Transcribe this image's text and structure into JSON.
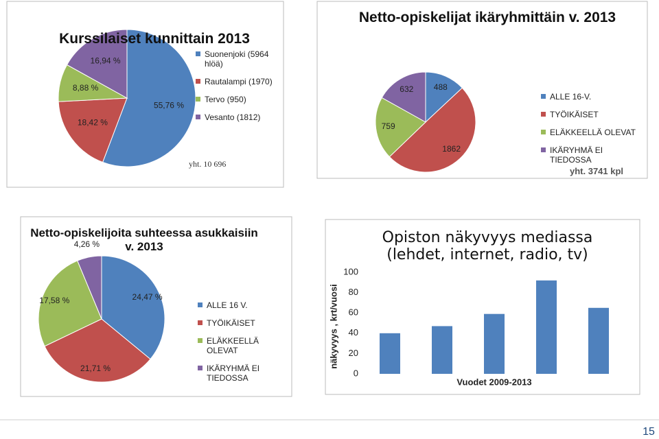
{
  "chart_data": [
    {
      "type": "pie",
      "title": "Kurssilaiset kunnittain 2013",
      "categories": [
        "Suonenjoki (5964 hlöä)",
        "Rautalampi (1970)",
        "Tervo (950)",
        "Vesanto (1812)"
      ],
      "values": [
        55.76,
        18.42,
        8.88,
        16.94
      ],
      "value_labels": [
        "55,76 %",
        "18,42 %",
        "8,88 %",
        "16,94 %"
      ],
      "colors": [
        "#4f81bd",
        "#c0504d",
        "#9bbb59",
        "#8064a2"
      ],
      "note": "yht. 10 696"
    },
    {
      "type": "pie",
      "title": "Netto-opiskelijat ikäryhmittäin v. 2013",
      "categories": [
        "ALLE 16-V.",
        "TYÖIKÄISET",
        "ELÄKKEELLÄ OLEVAT",
        "IKÄRYHMÄ EI TIEDOSSA"
      ],
      "values": [
        488,
        1862,
        759,
        632
      ],
      "colors": [
        "#4f81bd",
        "#c0504d",
        "#9bbb59",
        "#8064a2"
      ],
      "note": "yht. 3741 kpl"
    },
    {
      "type": "pie",
      "title": "Netto-opiskelijoita suhteessa asukkaisiin v. 2013",
      "categories": [
        "ALLE 16 V.",
        "TYÖIKÄISET",
        "ELÄKKEELLÄ OLEVAT",
        "IKÄRYHMÄ EI TIEDOSSA"
      ],
      "values": [
        24.47,
        21.71,
        17.58,
        4.26
      ],
      "value_labels": [
        "24,47 %",
        "21,71 %",
        "17,58 %",
        "4,26 %"
      ],
      "colors": [
        "#4f81bd",
        "#c0504d",
        "#9bbb59",
        "#8064a2"
      ]
    },
    {
      "type": "bar",
      "title": "Opiston näkyvyys mediassa (lehdet, internet, radio, tv)",
      "y_label": "näkyvyys , krt/vuosi",
      "x_label": "Vuodet 2009-2013",
      "categories": [
        null,
        null,
        null,
        null,
        null
      ],
      "values": [
        40,
        47,
        59,
        92,
        65
      ],
      "color": "#4f81bd",
      "ylim": [
        0,
        100
      ],
      "yticks": [
        0,
        20,
        40,
        60,
        80,
        100
      ]
    }
  ],
  "page_number": "15"
}
